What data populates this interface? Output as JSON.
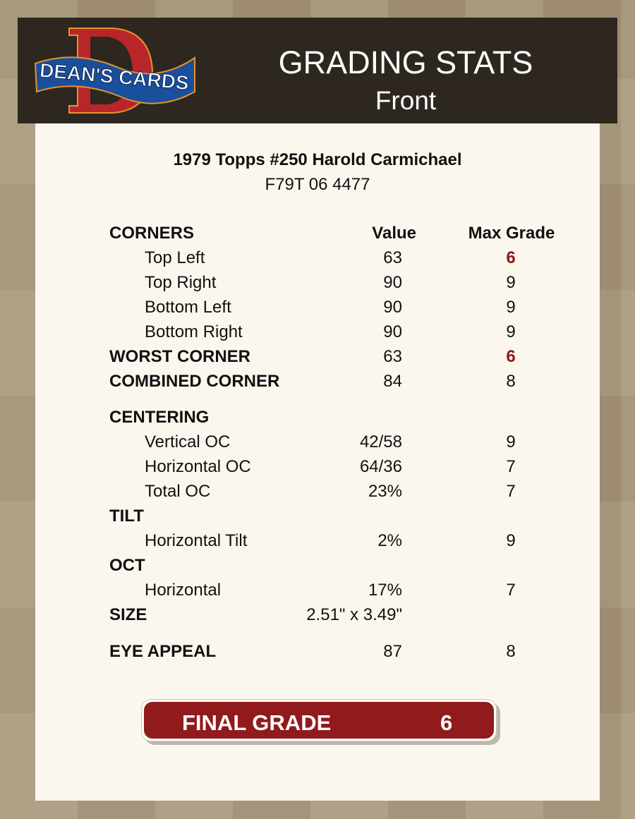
{
  "brand": {
    "logo_text": "DEAN'S CARDS",
    "colors": {
      "header": "#2d2720",
      "accent": "#901a1c",
      "panel": "#fcf7ee"
    }
  },
  "header": {
    "title": "GRADING STATS",
    "subtitle": "Front"
  },
  "card": {
    "name": "1979 Topps #250 Harold Carmichael",
    "cert": "F79T 06 4477"
  },
  "columns": {
    "value": "Value",
    "max": "Max Grade"
  },
  "rows": [
    {
      "label": "CORNERS",
      "kind": "section",
      "value": "",
      "max": ""
    },
    {
      "label": "Top Left",
      "kind": "sub",
      "value": "63",
      "max": "6",
      "highlight": true
    },
    {
      "label": "Top Right",
      "kind": "sub",
      "value": "90",
      "max": "9"
    },
    {
      "label": "Bottom Left",
      "kind": "sub",
      "value": "90",
      "max": "9"
    },
    {
      "label": "Bottom Right",
      "kind": "sub",
      "value": "90",
      "max": "9"
    },
    {
      "label": "WORST CORNER",
      "kind": "section",
      "value": "63",
      "max": "6",
      "highlight": true
    },
    {
      "label": "COMBINED CORNER",
      "kind": "section",
      "value": "84",
      "max": "8"
    },
    {
      "label": "CENTERING",
      "kind": "section",
      "value": "",
      "max": ""
    },
    {
      "label": "Vertical OC",
      "kind": "sub",
      "value": "42/58",
      "max": "9"
    },
    {
      "label": "Horizontal OC",
      "kind": "sub",
      "value": "64/36",
      "max": "7"
    },
    {
      "label": "Total OC",
      "kind": "sub",
      "value": "23%",
      "max": "7"
    },
    {
      "label": "TILT",
      "kind": "section",
      "value": "",
      "max": ""
    },
    {
      "label": "Horizontal Tilt",
      "kind": "sub",
      "value": "2%",
      "max": "9"
    },
    {
      "label": "OCT",
      "kind": "section",
      "value": "",
      "max": ""
    },
    {
      "label": "Horizontal",
      "kind": "sub",
      "value": "17%",
      "max": "7"
    },
    {
      "label": "SIZE",
      "kind": "section",
      "value": "2.51\" x 3.49\"",
      "max": ""
    },
    {
      "label": "EYE APPEAL",
      "kind": "section",
      "value": "87",
      "max": "8"
    }
  ],
  "final": {
    "label": "FINAL GRADE",
    "value": "6"
  }
}
